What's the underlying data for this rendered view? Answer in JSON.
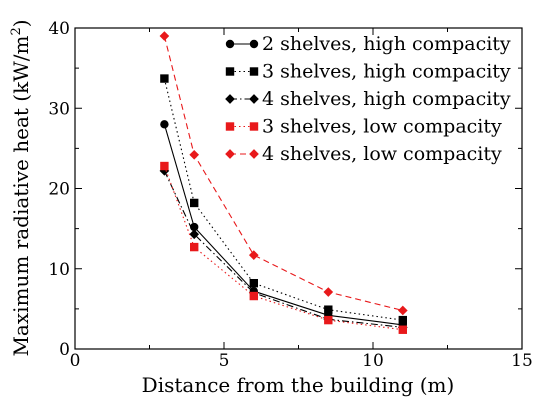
{
  "chart_data": {
    "type": "line",
    "xlabel": "Distance from the building (m)",
    "ylabel": "Maximum radiative heat (kW/m",
    "ylabel_sup": "2",
    "ylabel_suffix": ")",
    "xlim": [
      0,
      15
    ],
    "ylim": [
      0,
      40
    ],
    "xticks": [
      0,
      5,
      10,
      15
    ],
    "yticks": [
      0,
      10,
      20,
      30,
      40
    ],
    "grid": false,
    "legend_position": "top-right",
    "series": [
      {
        "name": "2 shelves, high compacity",
        "x": [
          3,
          4,
          6,
          8.5,
          11
        ],
        "y": [
          28,
          15.2,
          7.2,
          4.2,
          3.0
        ],
        "color": "#000000",
        "marker": "circle",
        "dash": "solid"
      },
      {
        "name": "3 shelves, high compacity",
        "x": [
          3,
          4,
          6,
          8.5,
          11
        ],
        "y": [
          33.7,
          18.2,
          8.2,
          4.9,
          3.6
        ],
        "color": "#000000",
        "marker": "square",
        "dash": "dotted"
      },
      {
        "name": "4 shelves, high compacity",
        "x": [
          3,
          4,
          6,
          8.5,
          11
        ],
        "y": [
          22.2,
          14.3,
          7.0,
          3.7,
          2.7
        ],
        "color": "#000000",
        "marker": "diamond",
        "dash": "dashdot"
      },
      {
        "name": "3 shelves, low compacity",
        "x": [
          3,
          4,
          6,
          8.5,
          11
        ],
        "y": [
          22.8,
          12.7,
          6.6,
          3.6,
          2.4
        ],
        "color": "#e8191b",
        "marker": "square",
        "dash": "dotted"
      },
      {
        "name": "4 shelves, low compacity",
        "x": [
          3,
          4,
          6,
          8.5,
          11
        ],
        "y": [
          39,
          24.2,
          11.7,
          7.1,
          4.8
        ],
        "color": "#e8191b",
        "marker": "diamond",
        "dash": "dashed"
      }
    ]
  }
}
